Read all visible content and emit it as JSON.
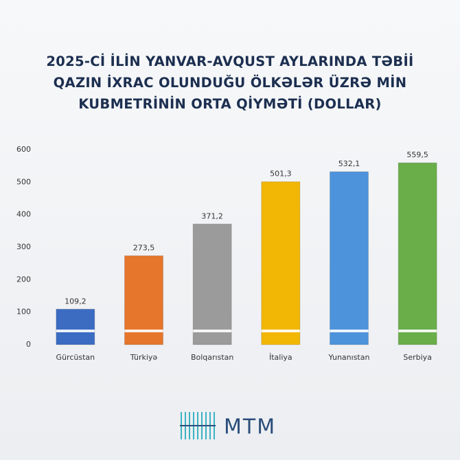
{
  "chart_data": {
    "type": "bar",
    "title": "2025-Cİ İLİN YANVAR-AVQUST AYLARINDA TƏBİİ QAZIN İXRAC OLUNDUĞU ÖLKƏLƏR ÜZRƏ MİN KUBMETRİNİN ORTA QİYMƏTİ (DOLLAR)",
    "categories": [
      "Gürcüstan",
      "Türkiyə",
      "Bolqarıstan",
      "İtaliya",
      "Yunanıstan",
      "Serbiya"
    ],
    "values": [
      109.2,
      273.5,
      371.2,
      501.3,
      532.1,
      559.5
    ],
    "value_labels": [
      "109,2",
      "273,5",
      "371,2",
      "501,3",
      "532,1",
      "559,5"
    ],
    "colors": [
      "#3b6cc2",
      "#e5762b",
      "#9b9b9b",
      "#f2b705",
      "#4d93dc",
      "#6aae4a"
    ],
    "ylim": [
      0,
      600
    ],
    "yticks": [
      0,
      100,
      200,
      300,
      400,
      500,
      600
    ],
    "grid": false
  },
  "footer": {
    "logo": "MTM"
  }
}
